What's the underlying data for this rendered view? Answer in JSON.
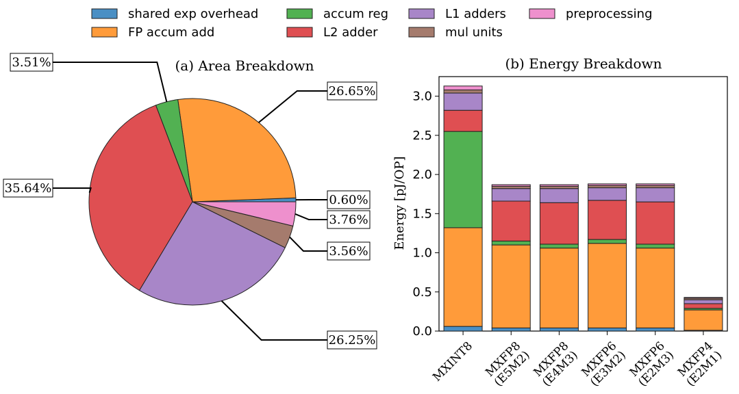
{
  "colors": {
    "shared_exp_overhead": "#4a8fc4",
    "fp_accum_add": "#ff9b3a",
    "accum_reg": "#52b152",
    "l2_adder": "#df4f52",
    "l1_adders": "#a886c8",
    "mul_units": "#a57b6d",
    "preprocessing": "#ee90cd"
  },
  "legend": {
    "items": [
      {
        "key": "shared_exp_overhead",
        "label": "shared exp overhead"
      },
      {
        "key": "fp_accum_add",
        "label": "FP accum add"
      },
      {
        "key": "accum_reg",
        "label": "accum reg"
      },
      {
        "key": "l2_adder",
        "label": "L2 adder"
      },
      {
        "key": "l1_adders",
        "label": "L1 adders"
      },
      {
        "key": "mul_units",
        "label": "mul units"
      },
      {
        "key": "preprocessing",
        "label": "preprocessing"
      }
    ]
  },
  "chart_data": [
    {
      "type": "pie",
      "title": "(a) Area Breakdown",
      "slices": [
        {
          "key": "shared_exp_overhead",
          "value": 0.6,
          "label": "0.60%"
        },
        {
          "key": "fp_accum_add",
          "value": 26.65,
          "label": "26.65%"
        },
        {
          "key": "accum_reg",
          "value": 3.51,
          "label": "3.51%"
        },
        {
          "key": "l2_adder",
          "value": 35.64,
          "label": "35.64%"
        },
        {
          "key": "l1_adders",
          "value": 26.25,
          "label": "26.25%"
        },
        {
          "key": "mul_units",
          "value": 3.56,
          "label": "3.56%"
        },
        {
          "key": "preprocessing",
          "value": 3.76,
          "label": "3.76%"
        }
      ]
    },
    {
      "type": "bar",
      "stacked": true,
      "title": "(b) Energy Breakdown",
      "ylabel": "Energy [pJ/OP]",
      "ylim": [
        0,
        3.25
      ],
      "yticks": [
        "0.0",
        "0.5",
        "1.0",
        "1.5",
        "2.0",
        "2.5",
        "3.0"
      ],
      "categories": [
        [
          "MXINT8"
        ],
        [
          "MXFP8",
          "(E5M2)"
        ],
        [
          "MXFP8",
          "(E4M3)"
        ],
        [
          "MXFP6",
          "(E3M2)"
        ],
        [
          "MXFP6",
          "(E2M3)"
        ],
        [
          "MXFP4",
          "(E2M1)"
        ]
      ],
      "series": [
        {
          "key": "shared_exp_overhead",
          "name": "shared exp overhead",
          "values": [
            0.06,
            0.04,
            0.04,
            0.04,
            0.04,
            0.01
          ]
        },
        {
          "key": "fp_accum_add",
          "name": "FP accum add",
          "values": [
            1.26,
            1.06,
            1.02,
            1.08,
            1.02,
            0.26
          ]
        },
        {
          "key": "accum_reg",
          "name": "accum reg",
          "values": [
            1.23,
            0.05,
            0.05,
            0.05,
            0.05,
            0.02
          ]
        },
        {
          "key": "l2_adder",
          "name": "L2 adder",
          "values": [
            0.27,
            0.51,
            0.53,
            0.5,
            0.54,
            0.06
          ]
        },
        {
          "key": "l1_adders",
          "name": "L1 adders",
          "values": [
            0.22,
            0.16,
            0.18,
            0.16,
            0.18,
            0.05
          ]
        },
        {
          "key": "mul_units",
          "name": "mul units",
          "values": [
            0.04,
            0.03,
            0.03,
            0.03,
            0.03,
            0.02
          ]
        },
        {
          "key": "preprocessing",
          "name": "preprocessing",
          "values": [
            0.05,
            0.02,
            0.02,
            0.02,
            0.02,
            0.01
          ]
        }
      ]
    }
  ]
}
